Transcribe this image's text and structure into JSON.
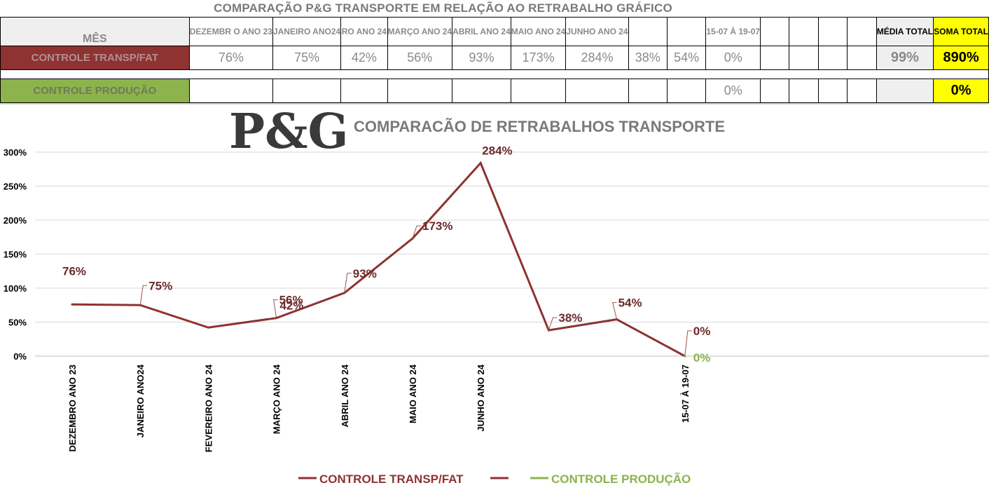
{
  "header": {
    "title": "COMPARAÇÃO P&G  TRANSPORTE EM RELAÇÃO AO RETRABALHO GRÁFICO",
    "mes_label": "MÊS",
    "months": [
      "DEZEMBR O ANO 23",
      "JANEIRO ANO24",
      "RO ANO 24",
      "MARÇO ANO 24",
      "ABRIL ANO 24",
      "MAIO ANO 24",
      "JUNHO ANO 24",
      "",
      "",
      "15-07 À 19-07",
      "",
      "",
      "",
      ""
    ],
    "media_label": "MÉDIA TOTAL",
    "soma_label": "SOMA TOTAL"
  },
  "rows": [
    {
      "label": "CONTROLE TRANSP/FAT",
      "values": [
        "76%",
        "75%",
        "42%",
        "56%",
        "93%",
        "173%",
        "284%",
        "38%",
        "54%",
        "0%",
        "",
        "",
        "",
        ""
      ],
      "media": "99%",
      "soma": "890%"
    },
    {
      "label": "CONTROLE PRODUÇÃO",
      "values": [
        "",
        "",
        "",
        "",
        "",
        "",
        "",
        "",
        "",
        "0%",
        "",
        "",
        "",
        ""
      ],
      "media": "",
      "soma": "0%"
    }
  ],
  "logo_text": "P&G",
  "colors": {
    "series_transp": "#8e3232",
    "series_producao": "#8db34c",
    "soma_bg": "#ffff00"
  },
  "chart_data": {
    "type": "line",
    "title": "COMPARACÃO DE RETRABALHOS TRANSPORTE",
    "categories": [
      "DEZEMBRO ANO 23",
      "JANEIRO ANO24",
      "FEVEREIRO ANO 24",
      "MARÇO  ANO 24",
      "ABRIL      ANO 24",
      "MAIO        ANO 24",
      "JUNHO      ANO 24",
      "",
      "",
      "15-07 À 19-07"
    ],
    "series": [
      {
        "name": "CONTROLE TRANSP/FAT",
        "values": [
          76,
          75,
          42,
          56,
          93,
          173,
          284,
          38,
          54,
          0
        ],
        "labels": [
          "76%",
          "75%",
          "42%",
          "56%",
          "93%",
          "173%",
          "284%",
          "38%",
          "54%",
          "0%"
        ]
      },
      {
        "name": "CONTROLE PRODUÇÃO",
        "values": [
          null,
          null,
          null,
          null,
          null,
          null,
          null,
          null,
          null,
          0
        ],
        "labels": [
          "",
          "",
          "",
          "",
          "",
          "",
          "",
          "",
          "",
          "0%"
        ]
      }
    ],
    "y_ticks": [
      "0%",
      "50%",
      "100%",
      "150%",
      "200%",
      "250%",
      "300%"
    ],
    "ylim": [
      0,
      300
    ],
    "grid": true,
    "legend": [
      "CONTROLE TRANSP/FAT",
      "",
      "CONTROLE PRODUÇÃO"
    ],
    "legend_position": "bottom"
  }
}
